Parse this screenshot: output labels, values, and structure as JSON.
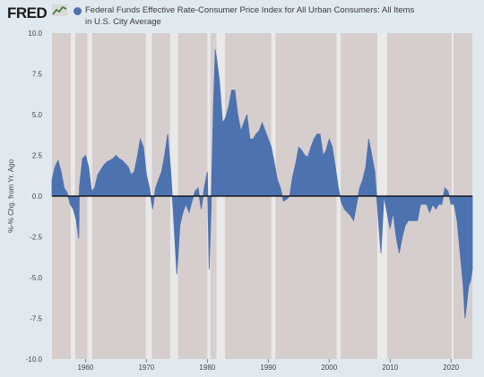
{
  "header": {
    "logo_text": "FRED",
    "legend_line1": "Federal Funds Effective Rate-Consumer Price Index for All Urban Consumers: All Items",
    "legend_line2": "in U.S. City Average"
  },
  "colors": {
    "series": "#4c72b0",
    "plot_background": "#d6cdcd",
    "recession": "#e9e9e9",
    "page_background": "#e1e9f0",
    "zero_line": "#000000"
  },
  "chart_data": {
    "type": "area",
    "title": "",
    "xlabel": "",
    "ylabel": "%-% Chg. from Yr. Ago",
    "xlim": [
      1954.5,
      2023.5
    ],
    "ylim": [
      -10,
      10
    ],
    "y_ticks": [
      10.0,
      7.5,
      5.0,
      2.5,
      0.0,
      -2.5,
      -5.0,
      -7.5,
      -10.0
    ],
    "y_tick_labels": [
      "10.0",
      "7.5",
      "5.0",
      "2.5",
      "0.0",
      "-2.5",
      "-5.0",
      "-7.5",
      "-10.0"
    ],
    "x_ticks": [
      1960,
      1970,
      1980,
      1990,
      2000,
      2010,
      2020
    ],
    "x_tick_labels": [
      "1960",
      "1970",
      "1980",
      "1990",
      "2000",
      "2010",
      "2020"
    ],
    "grid": false,
    "recessions": [
      [
        1957.6,
        1958.3
      ],
      [
        1960.3,
        1961.1
      ],
      [
        1969.9,
        1970.9
      ],
      [
        1973.9,
        1975.2
      ],
      [
        1980.0,
        1980.5
      ],
      [
        1981.5,
        1982.9
      ],
      [
        1990.5,
        1991.2
      ],
      [
        2001.2,
        2001.9
      ],
      [
        2007.9,
        2009.5
      ],
      [
        2020.1,
        2020.4
      ]
    ],
    "series": [
      {
        "name": "Federal Funds Effective Rate-Consumer Price Index for All Urban Consumers: All Items in U.S. City Average",
        "x": [
          1954.5,
          1955.0,
          1955.5,
          1956.0,
          1956.5,
          1957.0,
          1957.5,
          1958.0,
          1958.5,
          1958.9,
          1959.0,
          1959.5,
          1960.0,
          1960.5,
          1961.0,
          1961.5,
          1962.0,
          1962.5,
          1963.0,
          1963.5,
          1964.0,
          1964.5,
          1965.0,
          1965.5,
          1966.0,
          1966.5,
          1967.0,
          1967.5,
          1968.0,
          1968.5,
          1969.0,
          1969.5,
          1970.0,
          1970.5,
          1971.0,
          1971.5,
          1972.0,
          1972.5,
          1973.0,
          1973.5,
          1974.0,
          1974.5,
          1975.0,
          1975.5,
          1976.0,
          1976.5,
          1977.0,
          1977.5,
          1978.0,
          1978.5,
          1979.0,
          1979.5,
          1980.0,
          1980.3,
          1980.6,
          1981.0,
          1981.3,
          1981.6,
          1982.0,
          1982.5,
          1983.0,
          1983.5,
          1984.0,
          1984.5,
          1985.0,
          1985.5,
          1986.0,
          1986.5,
          1987.0,
          1987.5,
          1988.0,
          1988.5,
          1989.0,
          1989.5,
          1990.0,
          1990.5,
          1991.0,
          1991.5,
          1992.0,
          1992.5,
          1993.0,
          1993.5,
          1994.0,
          1994.5,
          1995.0,
          1995.5,
          1996.0,
          1996.5,
          1997.0,
          1997.5,
          1998.0,
          1998.5,
          1999.0,
          1999.5,
          2000.0,
          2000.5,
          2001.0,
          2001.5,
          2002.0,
          2002.5,
          2003.0,
          2003.5,
          2004.0,
          2004.5,
          2005.0,
          2005.5,
          2006.0,
          2006.5,
          2007.0,
          2007.5,
          2008.0,
          2008.5,
          2009.0,
          2009.5,
          2010.0,
          2010.5,
          2011.0,
          2011.5,
          2012.0,
          2012.5,
          2013.0,
          2013.5,
          2014.0,
          2014.5,
          2015.0,
          2015.5,
          2016.0,
          2016.5,
          2017.0,
          2017.5,
          2018.0,
          2018.5,
          2019.0,
          2019.5,
          2020.0,
          2020.5,
          2021.0,
          2021.5,
          2022.0,
          2022.3,
          2022.6,
          2022.9,
          2023.2,
          2023.5
        ],
        "values": [
          1.0,
          1.8,
          2.2,
          1.5,
          0.5,
          0.2,
          -0.5,
          -0.8,
          -1.5,
          -2.6,
          0.5,
          2.3,
          2.5,
          1.8,
          0.3,
          0.5,
          1.3,
          1.6,
          1.9,
          2.1,
          2.2,
          2.3,
          2.5,
          2.3,
          2.2,
          2.0,
          1.8,
          1.3,
          1.5,
          2.4,
          3.5,
          3.0,
          1.3,
          0.5,
          -0.8,
          0.5,
          1.0,
          1.5,
          2.5,
          3.8,
          1.5,
          -1.5,
          -4.8,
          -1.8,
          -1.0,
          -0.5,
          -1.0,
          -0.3,
          0.3,
          0.5,
          -0.8,
          0.5,
          1.5,
          -4.5,
          -1.0,
          5.5,
          9.0,
          8.2,
          7.0,
          4.5,
          4.8,
          5.5,
          6.5,
          6.5,
          5.0,
          4.0,
          4.5,
          5.0,
          3.5,
          3.5,
          3.8,
          4.0,
          4.5,
          4.0,
          3.5,
          3.0,
          2.0,
          1.0,
          0.5,
          -0.3,
          -0.2,
          0.0,
          1.2,
          2.0,
          3.0,
          2.8,
          2.5,
          2.4,
          3.0,
          3.5,
          3.8,
          3.8,
          2.5,
          2.8,
          3.5,
          3.0,
          1.8,
          0.5,
          -0.4,
          -0.8,
          -1.0,
          -1.2,
          -1.5,
          -0.5,
          0.5,
          1.0,
          1.8,
          3.5,
          2.5,
          1.5,
          -1.0,
          -3.5,
          0.0,
          -1.0,
          -2.0,
          -1.0,
          -2.5,
          -3.5,
          -2.5,
          -1.8,
          -1.5,
          -1.5,
          -1.5,
          -1.5,
          -0.5,
          -0.5,
          -0.5,
          -1.0,
          -0.5,
          -0.8,
          -0.5,
          -0.5,
          0.5,
          0.3,
          -0.5,
          -0.5,
          -1.5,
          -3.5,
          -5.5,
          -7.5,
          -6.5,
          -5.5,
          -5.2,
          -4.5
        ]
      }
    ]
  }
}
